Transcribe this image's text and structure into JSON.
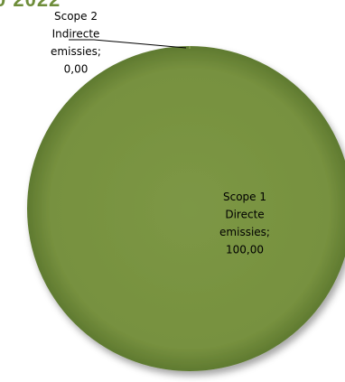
{
  "chart_data": {
    "type": "pie",
    "title_fragment": "0 2022",
    "slices": [
      {
        "label_lines": [
          "Scope 1",
          "Directe",
          "emissies;",
          "100,00"
        ],
        "value": 100.0,
        "color": "#7a9443"
      },
      {
        "label_lines": [
          "Scope 2",
          "Indirecte",
          "emissies;",
          "0,00"
        ],
        "value": 0.0,
        "color": "#9bb55f"
      }
    ]
  }
}
